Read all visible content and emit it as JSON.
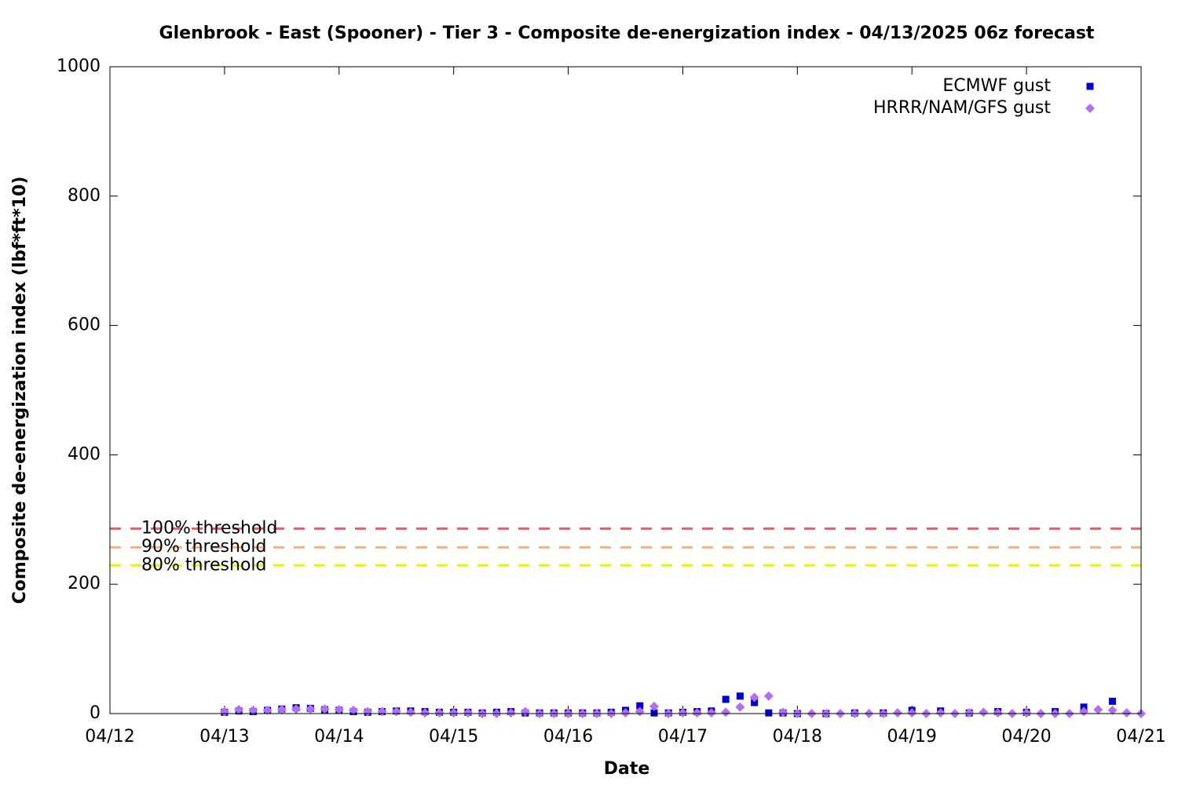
{
  "chart_data": {
    "type": "scatter",
    "title": "Glenbrook - East (Spooner) - Tier 3 - Composite de-energization index - 04/13/2025 06z forecast",
    "x_label": "Date",
    "y_label": "Composite de-energization index (lbf*ft*10)",
    "xlim": [
      12,
      21
    ],
    "xticks": [
      {
        "value": 12,
        "label": "04/12"
      },
      {
        "value": 13,
        "label": "04/13"
      },
      {
        "value": 14,
        "label": "04/14"
      },
      {
        "value": 15,
        "label": "04/15"
      },
      {
        "value": 16,
        "label": "04/16"
      },
      {
        "value": 17,
        "label": "04/17"
      },
      {
        "value": 18,
        "label": "04/18"
      },
      {
        "value": 19,
        "label": "04/19"
      },
      {
        "value": 20,
        "label": "04/20"
      },
      {
        "value": 21,
        "label": "04/21"
      }
    ],
    "ylim": [
      0,
      1000
    ],
    "yticks": [
      0,
      200,
      400,
      600,
      800,
      1000
    ],
    "legend": "top-right",
    "thresholds": [
      {
        "label": "100% threshold",
        "value": 286,
        "color": "#e06070"
      },
      {
        "label": "90% threshold",
        "value": 257,
        "color": "#f2b080"
      },
      {
        "label": "80% threshold",
        "value": 229,
        "color": "#f0f000"
      }
    ],
    "series": [
      {
        "name": "ECMWF gust",
        "color": "#0000d0",
        "marker": "square",
        "x": [
          13.0,
          13.125,
          13.25,
          13.375,
          13.5,
          13.625,
          13.75,
          13.875,
          14.0,
          14.125,
          14.25,
          14.375,
          14.5,
          14.625,
          14.75,
          14.875,
          15.0,
          15.125,
          15.25,
          15.375,
          15.5,
          15.625,
          15.75,
          15.875,
          16.0,
          16.125,
          16.25,
          16.375,
          16.5,
          16.625,
          16.75,
          16.875,
          17.0,
          17.125,
          17.25,
          17.375,
          17.5,
          17.625,
          17.75,
          17.875,
          18.0,
          18.25,
          18.5,
          18.75,
          19.0,
          19.25,
          19.5,
          19.75,
          20.0,
          20.25,
          20.5,
          20.75
        ],
        "values": [
          2,
          4,
          3,
          5,
          7,
          9,
          8,
          6,
          5,
          3,
          2,
          3,
          4,
          4,
          3,
          2,
          2,
          2,
          1,
          2,
          3,
          1,
          1,
          1,
          1,
          1,
          1,
          2,
          5,
          12,
          1,
          1,
          2,
          3,
          4,
          22,
          27,
          17,
          1,
          1,
          0,
          0,
          1,
          1,
          5,
          4,
          1,
          3,
          2,
          3,
          10,
          19
        ]
      },
      {
        "name": "HRRR/NAM/GFS gust",
        "color": "#b070f0",
        "marker": "diamond",
        "x": [
          13.0,
          13.125,
          13.25,
          13.375,
          13.5,
          13.625,
          13.75,
          13.875,
          14.0,
          14.125,
          14.25,
          14.375,
          14.5,
          14.625,
          14.75,
          14.875,
          15.0,
          15.125,
          15.25,
          15.375,
          15.5,
          15.625,
          15.75,
          15.875,
          16.0,
          16.125,
          16.25,
          16.375,
          16.5,
          16.625,
          16.75,
          16.875,
          17.0,
          17.125,
          17.25,
          17.375,
          17.5,
          17.625,
          17.75,
          17.875,
          18.0,
          18.125,
          18.25,
          18.375,
          18.5,
          18.625,
          18.75,
          18.875,
          19.0,
          19.125,
          19.25,
          19.375,
          19.5,
          19.625,
          19.75,
          19.875,
          20.0,
          20.125,
          20.25,
          20.375,
          20.5,
          20.625,
          20.75,
          20.875,
          21.0
        ],
        "values": [
          3,
          6,
          5,
          5,
          6,
          7,
          7,
          7,
          6,
          5,
          3,
          3,
          3,
          2,
          1,
          1,
          1,
          1,
          0,
          0,
          1,
          3,
          0,
          0,
          0,
          0,
          0,
          0,
          1,
          3,
          11,
          0,
          1,
          1,
          1,
          2,
          10,
          25,
          27,
          2,
          0,
          0,
          0,
          0,
          0,
          0,
          0,
          1,
          1,
          0,
          1,
          0,
          1,
          2,
          1,
          0,
          1,
          0,
          0,
          0,
          3,
          6,
          5,
          1,
          0
        ]
      }
    ]
  }
}
